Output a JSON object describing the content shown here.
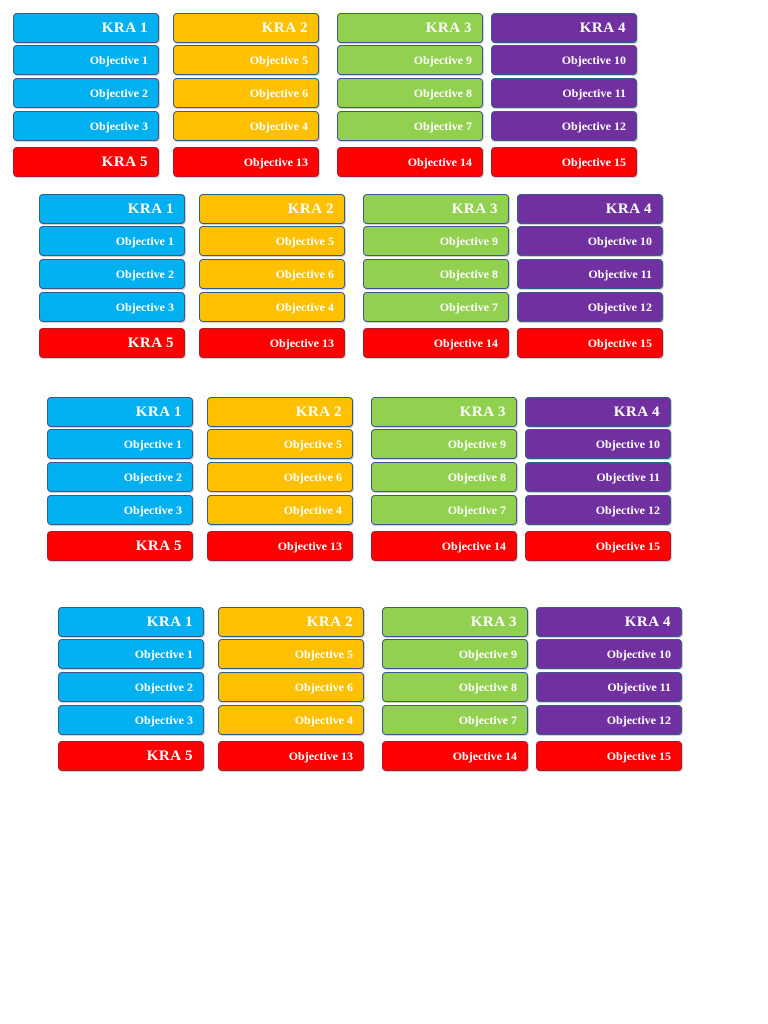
{
  "colors": {
    "blue": "#00b0f0",
    "orange": "#ffc000",
    "green": "#92d050",
    "purple": "#7030a0",
    "red": "#ff0000"
  },
  "columns": [
    {
      "color": "blue",
      "header": "KRA 1",
      "items": [
        "Objective 1",
        "Objective 2",
        "Objective 3"
      ],
      "bottom": "KRA 5",
      "bottom_is_header": true
    },
    {
      "color": "orange",
      "header": "KRA 2",
      "items": [
        "Objective 5",
        "Objective 6",
        "Objective 4"
      ],
      "bottom": "Objective 13",
      "bottom_is_header": false
    },
    {
      "color": "green",
      "header": "KRA 3",
      "items": [
        "Objective 9",
        "Objective 8",
        "Objective 7"
      ],
      "bottom": "Objective 14",
      "bottom_is_header": false
    },
    {
      "color": "purple",
      "header": "KRA 4",
      "items": [
        "Objective 10",
        "Objective 11",
        "Objective 12"
      ],
      "bottom": "Objective 15",
      "bottom_is_header": false
    }
  ],
  "copies": 4
}
